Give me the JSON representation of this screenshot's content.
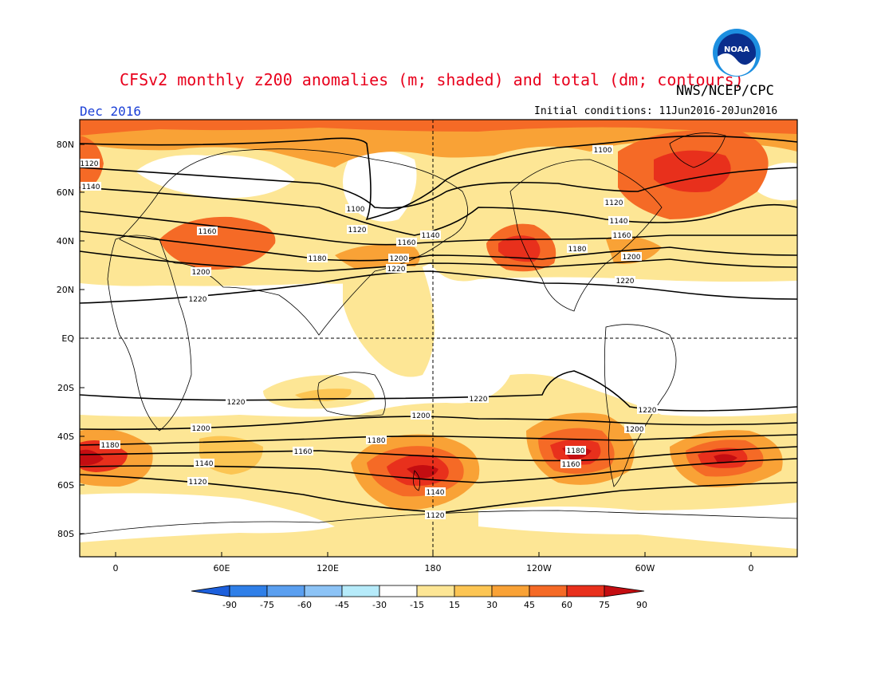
{
  "header": {
    "title": "CFSv2 monthly z200 anomalies (m; shaded) and total (dm; contours)",
    "org": "NWS/NCEP/CPC",
    "month": "Dec 2016",
    "initial_conditions": "Initial conditions: 11Jun2016-20Jun2016"
  },
  "logo": {
    "text": "NOAA",
    "icon": "noaa-logo-icon"
  },
  "map": {
    "lat_labels": [
      "80N",
      "60N",
      "40N",
      "20N",
      "EQ",
      "20S",
      "40S",
      "60S",
      "80S"
    ],
    "lon_labels": [
      "0",
      "60E",
      "120E",
      "180",
      "120W",
      "60W",
      "0"
    ]
  },
  "colorbar": {
    "labels": [
      "-90",
      "-75",
      "-60",
      "-45",
      "-30",
      "-15",
      "15",
      "30",
      "45",
      "60",
      "75",
      "90"
    ],
    "colors": [
      "#1c5fdc",
      "#2f7fe8",
      "#5a9ff0",
      "#8cc3f6",
      "#b6ebfa",
      "#ffffff",
      "#fde695",
      "#fcc553",
      "#f9a236",
      "#f56a26",
      "#e8301c",
      "#c40d11"
    ]
  },
  "contour_labels": {
    "c1100a": "1100",
    "c1100b": "1100",
    "c1120a": "1120",
    "c1120b": "1120",
    "c1120c": "1120",
    "c1140a": "1140",
    "c1140b": "1140",
    "c1140c": "1140",
    "c1160a": "1160",
    "c1160b": "1160",
    "c1160c": "1160",
    "c1180a": "1180",
    "c1180b": "1180",
    "c1200a": "1200",
    "c1200b": "1200",
    "c1200c": "1200",
    "c1220a": "1220",
    "c1220b": "1220",
    "c1220c": "1220",
    "s1220a": "1220",
    "s1220b": "1220",
    "s1220c": "1220",
    "s1200a": "1200",
    "s1200b": "1200",
    "s1200c": "1200",
    "s1180a": "1180",
    "s1180b": "1180",
    "s1180c": "1180",
    "s1160a": "1160",
    "s1160b": "1160",
    "s1140a": "1140",
    "s1140b": "1140",
    "s1120a": "1120",
    "s1120b": "1120"
  }
}
